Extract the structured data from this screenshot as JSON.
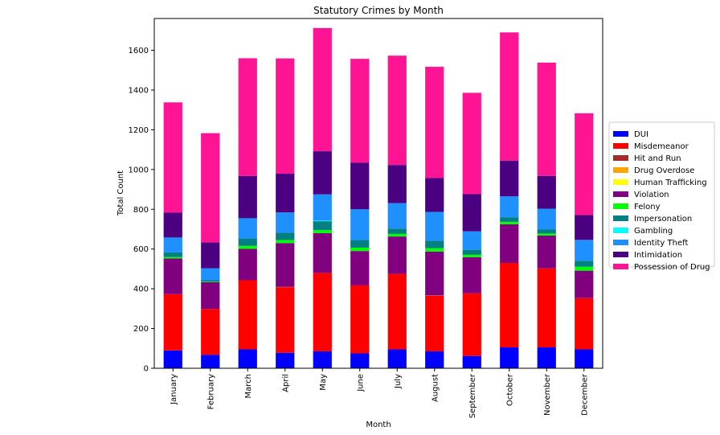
{
  "chart_data": {
    "type": "bar",
    "stacked": true,
    "title": "Statutory Crimes by Month",
    "xlabel": "Month",
    "ylabel": "Total Count",
    "ylim": [
      0,
      1760
    ],
    "yticks": [
      0,
      200,
      400,
      600,
      800,
      1000,
      1200,
      1400,
      1600
    ],
    "legend_position": "right",
    "grid": false,
    "categories": [
      "January",
      "February",
      "March",
      "April",
      "May",
      "June",
      "July",
      "August",
      "September",
      "October",
      "November",
      "December"
    ],
    "series": [
      {
        "name": "DUI",
        "color": "#0000ff",
        "values": [
          90,
          68,
          95,
          78,
          85,
          75,
          95,
          85,
          62,
          105,
          105,
          95
        ]
      },
      {
        "name": "Misdemeanor",
        "color": "#ff0000",
        "values": [
          283,
          230,
          348,
          330,
          395,
          342,
          380,
          280,
          315,
          425,
          398,
          258
        ]
      },
      {
        "name": "Hit and Run",
        "color": "#a52a2a",
        "values": [
          0,
          0,
          0,
          2,
          0,
          0,
          0,
          2,
          0,
          0,
          0,
          0
        ]
      },
      {
        "name": "Drug Overdose",
        "color": "#ffa500",
        "values": [
          0,
          0,
          0,
          0,
          0,
          0,
          0,
          0,
          0,
          0,
          0,
          0
        ]
      },
      {
        "name": "Human Trafficking",
        "color": "#ffff00",
        "values": [
          0,
          0,
          0,
          0,
          0,
          0,
          0,
          0,
          0,
          0,
          0,
          0
        ]
      },
      {
        "name": "Violation",
        "color": "#800080",
        "values": [
          180,
          135,
          158,
          220,
          200,
          173,
          188,
          220,
          182,
          195,
          165,
          138
        ]
      },
      {
        "name": "Felony",
        "color": "#00ff00",
        "values": [
          7,
          3,
          15,
          15,
          15,
          17,
          13,
          17,
          12,
          12,
          10,
          20
        ]
      },
      {
        "name": "Impersonation",
        "color": "#008080",
        "values": [
          23,
          7,
          37,
          37,
          45,
          38,
          27,
          38,
          25,
          23,
          20,
          30
        ]
      },
      {
        "name": "Gambling",
        "color": "#00ffff",
        "values": [
          0,
          0,
          0,
          0,
          3,
          0,
          0,
          0,
          0,
          0,
          0,
          0
        ]
      },
      {
        "name": "Identity Theft",
        "color": "#1e90ff",
        "values": [
          75,
          60,
          102,
          102,
          132,
          155,
          128,
          145,
          93,
          105,
          105,
          105
        ]
      },
      {
        "name": "Intimidation",
        "color": "#4b0082",
        "values": [
          125,
          130,
          213,
          195,
          217,
          235,
          192,
          170,
          187,
          180,
          165,
          125
        ]
      },
      {
        "name": "Possession of Drug",
        "color": "#ff1493",
        "values": [
          555,
          550,
          592,
          580,
          620,
          522,
          550,
          560,
          510,
          645,
          570,
          512
        ]
      }
    ]
  }
}
